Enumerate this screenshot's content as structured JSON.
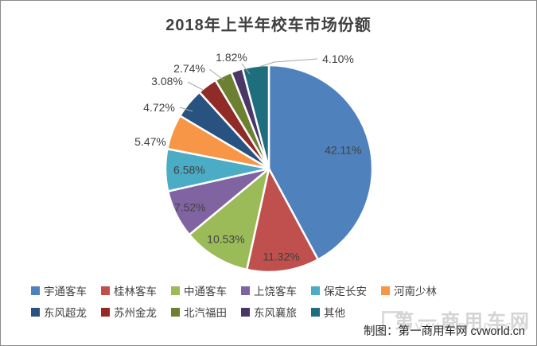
{
  "title": "2018年上半年校车市场份额",
  "chart_data": {
    "type": "pie",
    "title": "2018年上半年校车市场份额",
    "start_angle_deg": 0,
    "direction": "clockwise",
    "legend_position": "bottom",
    "total_percent": 99.99,
    "series": [
      {
        "name": "宇通客车",
        "value": 42.11,
        "label": "42.11%",
        "color": "#4F81BD"
      },
      {
        "name": "桂林客车",
        "value": 11.32,
        "label": "11.32%",
        "color": "#C0504D"
      },
      {
        "name": "中通客车",
        "value": 10.53,
        "label": "10.53%",
        "color": "#9BBB59"
      },
      {
        "name": "上饶客车",
        "value": 7.52,
        "label": "7.52%",
        "color": "#8064A2"
      },
      {
        "name": "保定长安",
        "value": 6.58,
        "label": "6.58%",
        "color": "#4BACC6"
      },
      {
        "name": "河南少林",
        "value": 5.47,
        "label": "5.47%",
        "color": "#F79646"
      },
      {
        "name": "东风超龙",
        "value": 4.72,
        "label": "4.72%",
        "color": "#28527F"
      },
      {
        "name": "苏州金龙",
        "value": 3.08,
        "label": "3.08%",
        "color": "#902B27"
      },
      {
        "name": "北汽福田",
        "value": 2.74,
        "label": "2.74%",
        "color": "#6D8032"
      },
      {
        "name": "东风襄旅",
        "value": 1.82,
        "label": "1.82%",
        "color": "#4A3766"
      },
      {
        "name": "其他",
        "value": 4.1,
        "label": "4.10%",
        "color": "#1F6E7E"
      }
    ],
    "label_color": "#404040",
    "leader_line_color": "#A6A6A6",
    "slice_border_color": "#FFFFFF"
  },
  "footer": {
    "caption": "制图：第一商用车网 cvworld.cn"
  },
  "watermark": {
    "text": "第一商用车网",
    "subtext": "CVWORLD.CN"
  }
}
